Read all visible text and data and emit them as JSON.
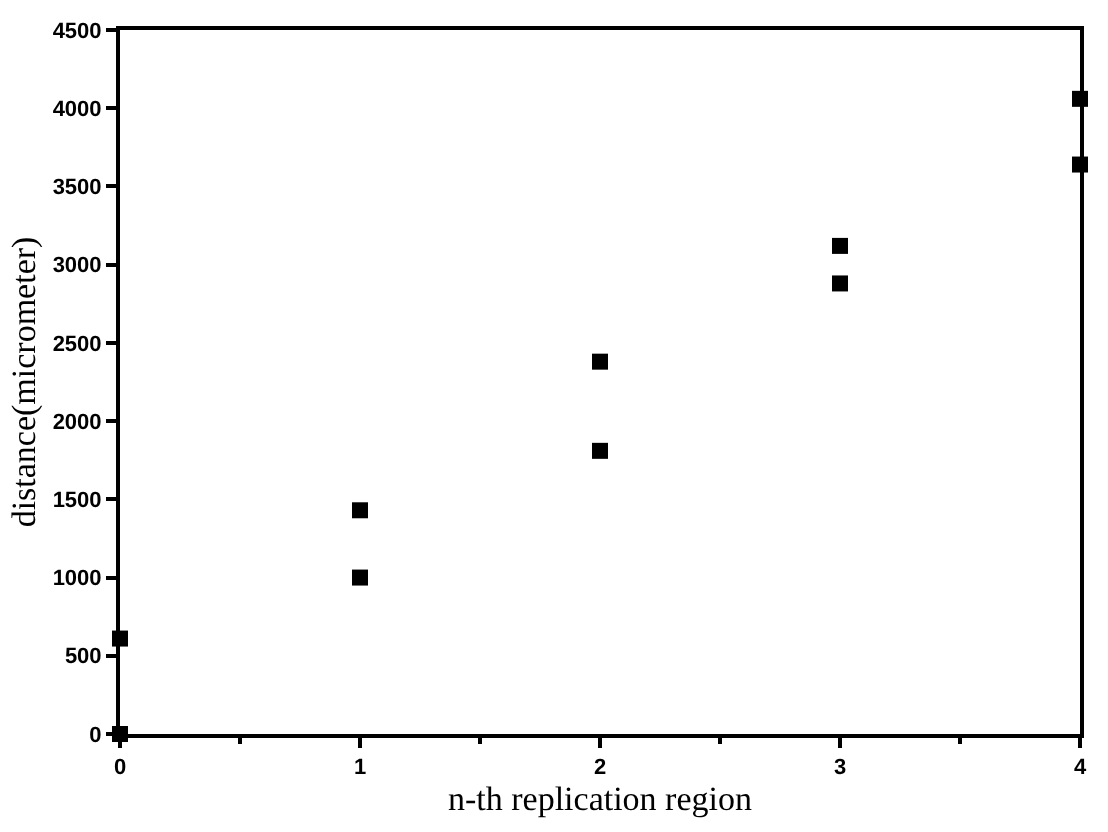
{
  "chart_data": {
    "type": "scatter",
    "xlabel": "n-th replication region",
    "ylabel": "distance(micrometer)",
    "x": [
      0,
      0,
      1,
      1,
      2,
      2,
      3,
      3,
      4,
      4
    ],
    "values": [
      0,
      610,
      1000,
      1430,
      1810,
      2380,
      2880,
      3120,
      3640,
      4060
    ],
    "color": "#000000",
    "marker": "square",
    "xlim": [
      0,
      4
    ],
    "xticks": [
      0,
      1,
      2,
      3,
      4
    ],
    "ylim": [
      0,
      4500
    ],
    "yticks": [
      0,
      500,
      1000,
      1500,
      2000,
      2500,
      3000,
      3500,
      4000,
      4500
    ]
  }
}
